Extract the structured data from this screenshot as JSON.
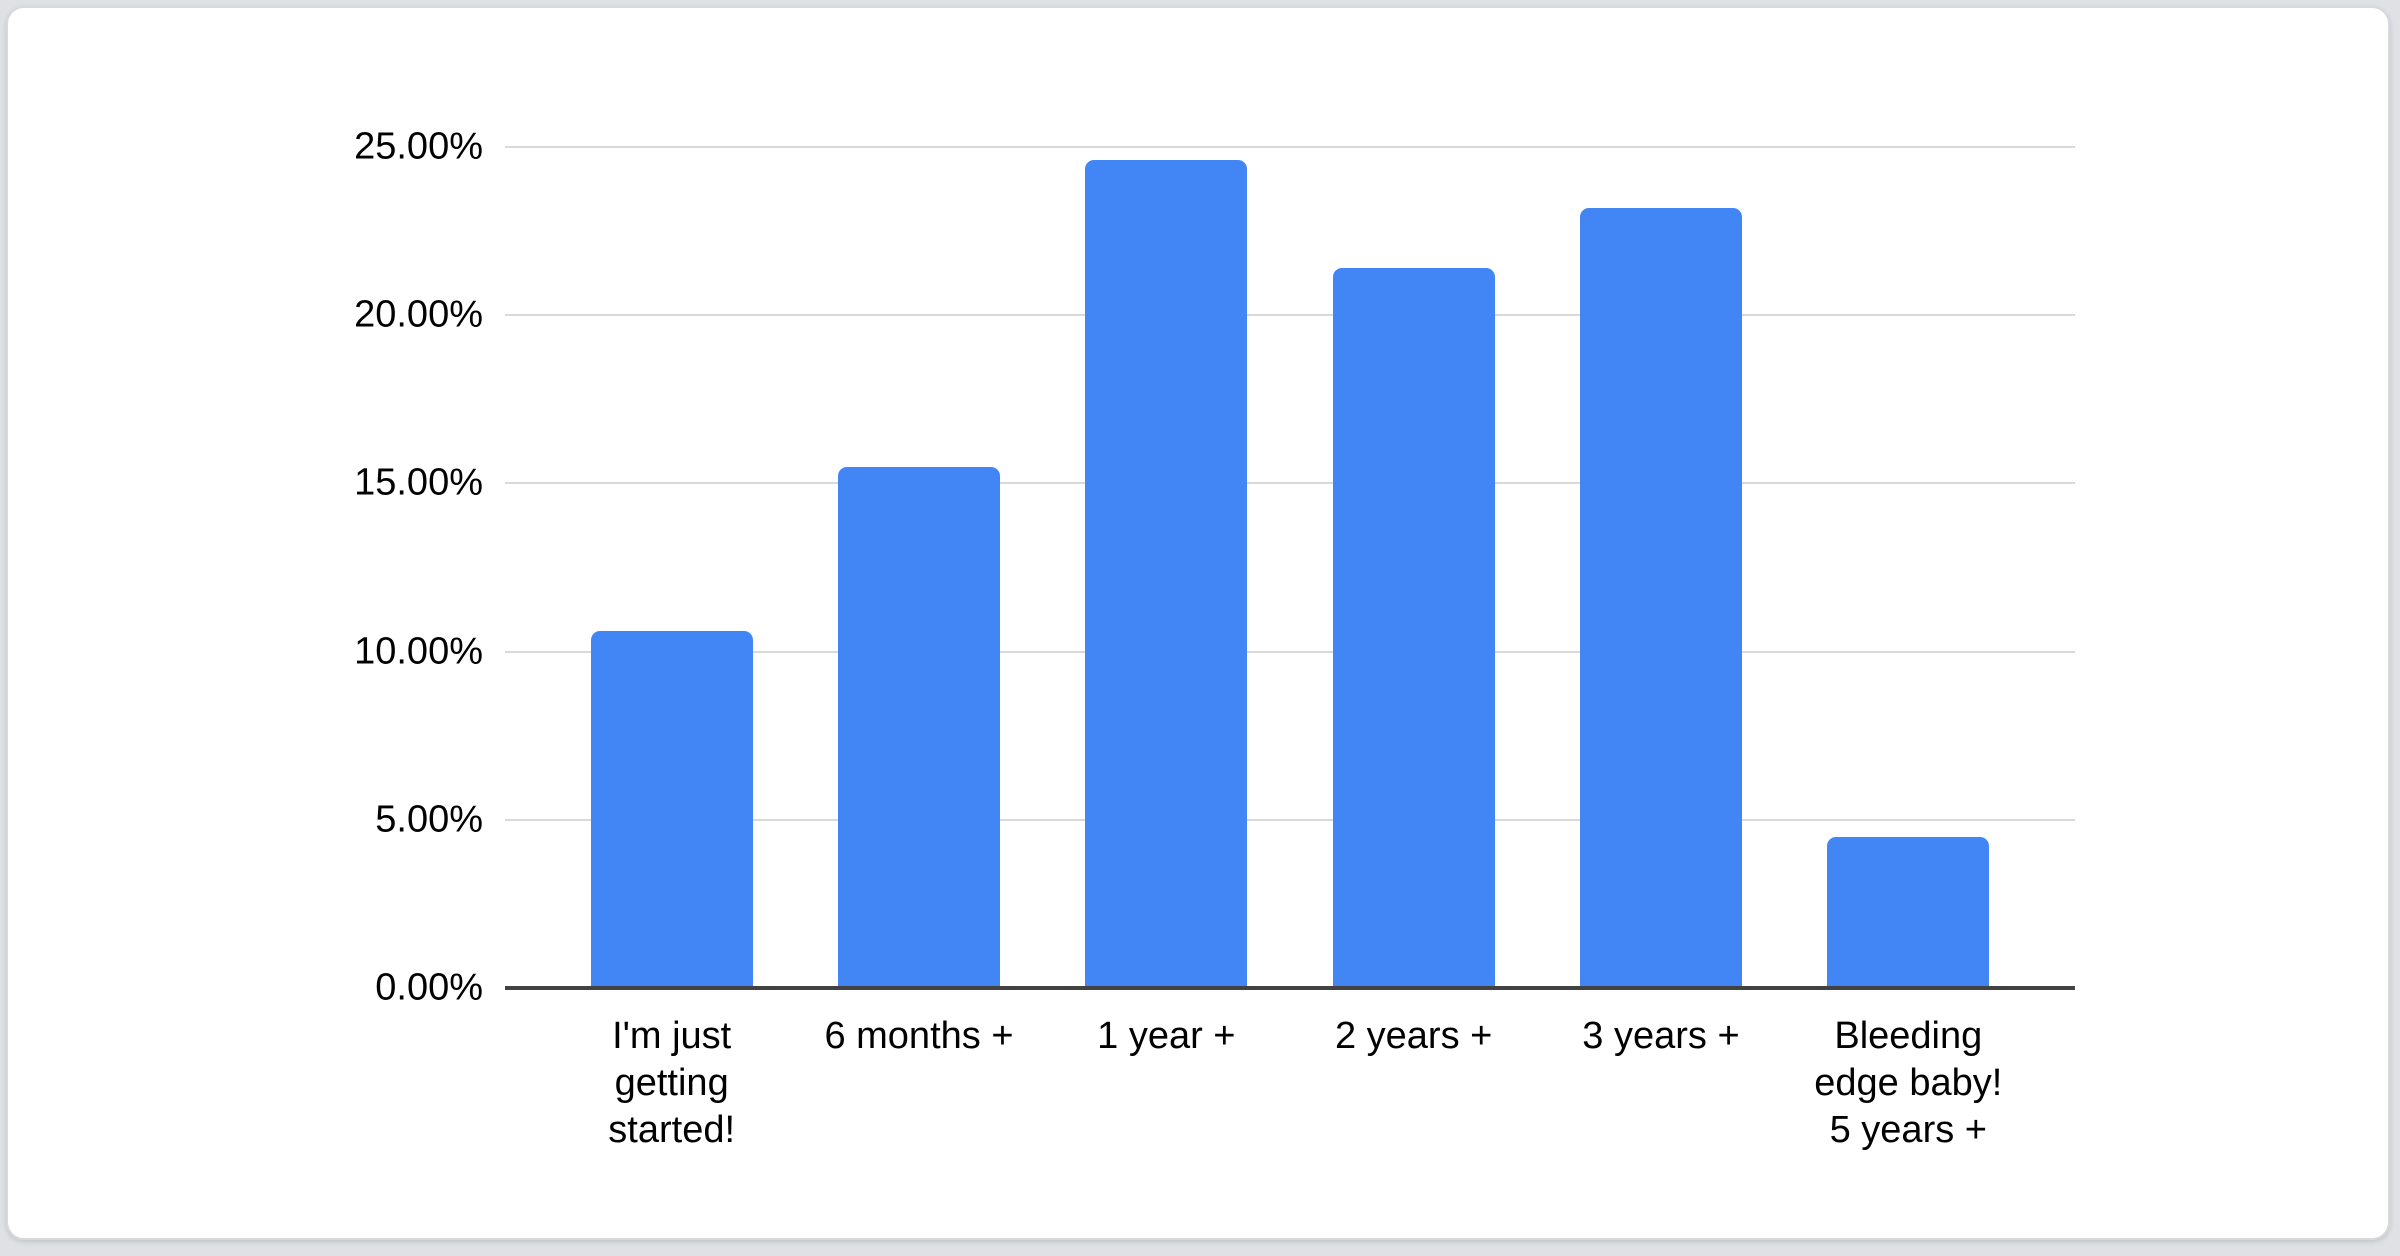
{
  "page": {
    "background_color": "#dfe1e5",
    "card_background": "#ffffff",
    "card_border_color": "#d7d9dd"
  },
  "chart_data": {
    "type": "bar",
    "title": "",
    "xlabel": "",
    "ylabel": "",
    "categories": [
      "I'm just getting started!",
      "6 months +",
      "1 year +",
      "2 years +",
      "3 years +",
      "Bleeding edge baby! 5 years +"
    ],
    "categories_display": [
      "I'm just\ngetting\nstarted!",
      "6 months +",
      "1 year +",
      "2 years +",
      "3 years +",
      "Bleeding\nedge baby!\n5 years +"
    ],
    "values": [
      10.6,
      15.5,
      24.6,
      21.4,
      23.2,
      4.5
    ],
    "value_unit": "%",
    "ylim": [
      0,
      25
    ],
    "ytick_step": 5,
    "yticks_top_to_bottom": [
      "25.00%",
      "20.00%",
      "15.00%",
      "10.00%",
      "5.00%",
      "0.00%"
    ],
    "grid": true,
    "legend": "none",
    "bar_color": "#4285f4",
    "gridline_color": "#d9d9d9",
    "axis_line_color": "#424242",
    "label_color": "#000000"
  }
}
